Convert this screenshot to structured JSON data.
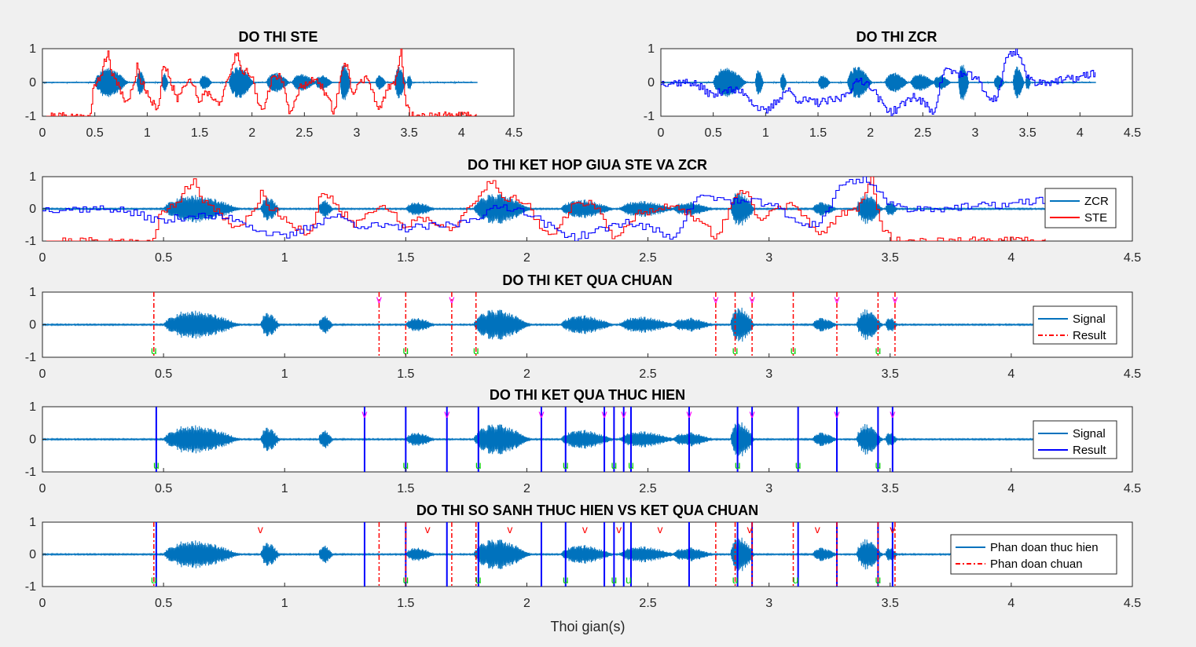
{
  "figure": {
    "xlabel": "Thoi gian(s)"
  },
  "colors": {
    "signal": "#0072BD",
    "ste": "#FF0000",
    "zcr": "#0000FF",
    "result": "#FF0000",
    "impl": "#0000FF",
    "mark_v": "#FF00FF",
    "mark_u": "#00CC00",
    "cmp_v": "#FF0000"
  },
  "chart_data": [
    {
      "id": "ste",
      "type": "line",
      "title": "DO THI STE",
      "xlim": [
        0,
        4.5
      ],
      "ylim": [
        -1,
        1
      ],
      "xticks": [
        "0",
        "0.5",
        "1",
        "1.5",
        "2",
        "2.5",
        "3",
        "3.5",
        "4",
        "4.5"
      ],
      "yticks": [
        "1",
        "0",
        "-1"
      ],
      "series": [
        {
          "name": "Signal",
          "kind": "speech",
          "color": "#0072BD"
        },
        {
          "name": "STE",
          "kind": "ste",
          "color": "#FF0000",
          "points": [
            [
              0,
              -1
            ],
            [
              0.46,
              -1
            ],
            [
              0.48,
              -0.2
            ],
            [
              0.55,
              0.2
            ],
            [
              0.62,
              0.9
            ],
            [
              0.65,
              0.3
            ],
            [
              0.7,
              0.1
            ],
            [
              0.75,
              -0.3
            ],
            [
              0.8,
              -0.6
            ],
            [
              0.86,
              -0.2
            ],
            [
              0.9,
              0.5
            ],
            [
              0.93,
              0.1
            ],
            [
              1.0,
              -0.3
            ],
            [
              1.05,
              -0.6
            ],
            [
              1.1,
              -0.9
            ],
            [
              1.15,
              0.55
            ],
            [
              1.2,
              0.2
            ],
            [
              1.28,
              -0.5
            ],
            [
              1.38,
              0.1
            ],
            [
              1.42,
              0.05
            ],
            [
              1.5,
              -0.6
            ],
            [
              1.55,
              -0.2
            ],
            [
              1.6,
              -0.4
            ],
            [
              1.7,
              -0.6
            ],
            [
              1.75,
              -0.1
            ],
            [
              1.85,
              0.9
            ],
            [
              1.9,
              0.4
            ],
            [
              2.0,
              0.2
            ],
            [
              2.05,
              -0.6
            ],
            [
              2.1,
              -0.9
            ],
            [
              2.2,
              0.3
            ],
            [
              2.28,
              0.1
            ],
            [
              2.35,
              -0.9
            ],
            [
              2.45,
              -0.2
            ],
            [
              2.55,
              0.1
            ],
            [
              2.6,
              0.05
            ],
            [
              2.7,
              -0.3
            ],
            [
              2.78,
              -0.9
            ],
            [
              2.86,
              0.45
            ],
            [
              2.9,
              0.6
            ],
            [
              2.95,
              -0.4
            ],
            [
              3.0,
              -0.1
            ],
            [
              3.1,
              0.2
            ],
            [
              3.2,
              -0.9
            ],
            [
              3.3,
              -0.1
            ],
            [
              3.36,
              0.0
            ],
            [
              3.42,
              0.95
            ],
            [
              3.46,
              -0.6
            ],
            [
              3.5,
              -0.9
            ],
            [
              3.52,
              -1
            ],
            [
              4.15,
              -1
            ]
          ]
        }
      ]
    },
    {
      "id": "zcr",
      "type": "line",
      "title": "DO THI ZCR",
      "xlim": [
        0,
        4.5
      ],
      "ylim": [
        -1,
        1
      ],
      "xticks": [
        "0",
        "0.5",
        "1",
        "1.5",
        "2",
        "2.5",
        "3",
        "3.5",
        "4",
        "4.5"
      ],
      "yticks": [
        "1",
        "0",
        "-1"
      ],
      "series": [
        {
          "name": "Signal",
          "kind": "speech",
          "color": "#0072BD"
        },
        {
          "name": "ZCR",
          "kind": "zcr",
          "color": "#0000FF",
          "points": [
            [
              0,
              0
            ],
            [
              0.3,
              0
            ],
            [
              0.5,
              -0.4
            ],
            [
              0.6,
              -0.2
            ],
            [
              0.8,
              -0.3
            ],
            [
              0.9,
              -0.7
            ],
            [
              1.0,
              -0.9
            ],
            [
              1.2,
              -0.2
            ],
            [
              1.3,
              -0.5
            ],
            [
              1.5,
              -0.6
            ],
            [
              1.7,
              -0.5
            ],
            [
              1.9,
              0.1
            ],
            [
              2.0,
              -0.1
            ],
            [
              2.1,
              -0.6
            ],
            [
              2.2,
              -0.9
            ],
            [
              2.4,
              -0.4
            ],
            [
              2.5,
              -0.6
            ],
            [
              2.6,
              -0.9
            ],
            [
              2.7,
              0.4
            ],
            [
              2.8,
              0.3
            ],
            [
              2.9,
              0.2
            ],
            [
              3.0,
              0.2
            ],
            [
              3.1,
              -0.4
            ],
            [
              3.2,
              -0.5
            ],
            [
              3.3,
              0.8
            ],
            [
              3.4,
              0.95
            ],
            [
              3.5,
              0.1
            ],
            [
              3.6,
              0.0
            ],
            [
              3.8,
              0.05
            ],
            [
              4.0,
              0.15
            ],
            [
              4.15,
              0.3
            ]
          ]
        }
      ]
    },
    {
      "id": "combined",
      "type": "line",
      "title": "DO THI KET HOP GIUA STE VA ZCR",
      "xlim": [
        0,
        4.5
      ],
      "ylim": [
        -1,
        1
      ],
      "xticks": [
        "0",
        "0.5",
        "1",
        "1.5",
        "2",
        "2.5",
        "3",
        "3.5",
        "4",
        "4.5"
      ],
      "yticks": [
        "1",
        "0",
        "-1"
      ],
      "legend": {
        "position": "right",
        "entries": [
          {
            "label": "ZCR",
            "color": "#0072BD",
            "style": "solid"
          },
          {
            "label": "STE",
            "color": "#FF0000",
            "style": "solid"
          }
        ]
      },
      "series": [
        {
          "name": "Signal",
          "kind": "speech",
          "color": "#0072BD"
        },
        {
          "name": "STE",
          "kind": "ste",
          "color": "#FF0000"
        },
        {
          "name": "ZCR",
          "kind": "zcr",
          "color": "#0000FF"
        }
      ]
    },
    {
      "id": "reference",
      "type": "line",
      "title": "DO THI KET QUA CHUAN",
      "xlim": [
        0,
        4.5
      ],
      "ylim": [
        -1,
        1
      ],
      "xticks": [
        "0",
        "0.5",
        "1",
        "1.5",
        "2",
        "2.5",
        "3",
        "3.5",
        "4",
        "4.5"
      ],
      "yticks": [
        "1",
        "0",
        "-1"
      ],
      "legend": {
        "position": "right",
        "entries": [
          {
            "label": "Signal",
            "color": "#0072BD",
            "style": "solid"
          },
          {
            "label": "Result",
            "color": "#FF0000",
            "style": "dashdot"
          }
        ]
      },
      "series": [
        {
          "name": "Signal",
          "kind": "speech",
          "color": "#0072BD"
        }
      ],
      "boundaries": [
        {
          "name": "Result",
          "style": "dashdot",
          "color": "#FF0000",
          "x": [
            0.46,
            1.39,
            1.5,
            1.69,
            1.79,
            2.78,
            2.86,
            2.93,
            3.1,
            3.28,
            3.45,
            3.52
          ]
        }
      ],
      "markers": [
        {
          "label": "u",
          "x": 0.46,
          "pos": "bottom",
          "color": "#00CC00"
        },
        {
          "label": "v",
          "x": 1.39,
          "pos": "top",
          "color": "#FF00FF"
        },
        {
          "label": "u",
          "x": 1.5,
          "pos": "bottom",
          "color": "#00CC00"
        },
        {
          "label": "v",
          "x": 1.69,
          "pos": "top",
          "color": "#FF00FF"
        },
        {
          "label": "u",
          "x": 1.79,
          "pos": "bottom",
          "color": "#00CC00"
        },
        {
          "label": "v",
          "x": 2.78,
          "pos": "top",
          "color": "#FF00FF"
        },
        {
          "label": "u",
          "x": 2.86,
          "pos": "bottom",
          "color": "#00CC00"
        },
        {
          "label": "v",
          "x": 2.93,
          "pos": "top",
          "color": "#FF00FF"
        },
        {
          "label": "u",
          "x": 3.1,
          "pos": "bottom",
          "color": "#00CC00"
        },
        {
          "label": "v",
          "x": 3.28,
          "pos": "top",
          "color": "#FF00FF"
        },
        {
          "label": "u",
          "x": 3.45,
          "pos": "bottom",
          "color": "#00CC00"
        },
        {
          "label": "v",
          "x": 3.52,
          "pos": "top",
          "color": "#FF00FF"
        }
      ]
    },
    {
      "id": "implemented",
      "type": "line",
      "title": "DO THI KET QUA THUC HIEN",
      "xlim": [
        0,
        4.5
      ],
      "ylim": [
        -1,
        1
      ],
      "xticks": [
        "0",
        "0.5",
        "1",
        "1.5",
        "2",
        "2.5",
        "3",
        "3.5",
        "4",
        "4.5"
      ],
      "yticks": [
        "1",
        "0",
        "-1"
      ],
      "legend": {
        "position": "right",
        "entries": [
          {
            "label": "Signal",
            "color": "#0072BD",
            "style": "solid"
          },
          {
            "label": "Result",
            "color": "#0000FF",
            "style": "solid"
          }
        ]
      },
      "series": [
        {
          "name": "Signal",
          "kind": "speech",
          "color": "#0072BD"
        }
      ],
      "boundaries": [
        {
          "name": "Result",
          "style": "solid",
          "color": "#0000FF",
          "x": [
            0.47,
            1.33,
            1.5,
            1.67,
            1.8,
            2.06,
            2.16,
            2.32,
            2.36,
            2.4,
            2.43,
            2.67,
            2.87,
            2.93,
            3.12,
            3.28,
            3.45,
            3.51
          ]
        }
      ],
      "markers": [
        {
          "label": "u",
          "x": 0.47,
          "pos": "bottom",
          "color": "#00CC00"
        },
        {
          "label": "v",
          "x": 1.33,
          "pos": "top",
          "color": "#FF00FF"
        },
        {
          "label": "u",
          "x": 1.5,
          "pos": "bottom",
          "color": "#00CC00"
        },
        {
          "label": "v",
          "x": 1.67,
          "pos": "top",
          "color": "#FF00FF"
        },
        {
          "label": "u",
          "x": 1.8,
          "pos": "bottom",
          "color": "#00CC00"
        },
        {
          "label": "v",
          "x": 2.06,
          "pos": "top",
          "color": "#FF00FF"
        },
        {
          "label": "u",
          "x": 2.16,
          "pos": "bottom",
          "color": "#00CC00"
        },
        {
          "label": "v",
          "x": 2.32,
          "pos": "top",
          "color": "#FF00FF"
        },
        {
          "label": "u",
          "x": 2.36,
          "pos": "bottom",
          "color": "#00CC00"
        },
        {
          "label": "v",
          "x": 2.4,
          "pos": "top",
          "color": "#FF00FF"
        },
        {
          "label": "u",
          "x": 2.43,
          "pos": "bottom",
          "color": "#00CC00"
        },
        {
          "label": "v",
          "x": 2.67,
          "pos": "top",
          "color": "#FF00FF"
        },
        {
          "label": "u",
          "x": 2.87,
          "pos": "bottom",
          "color": "#00CC00"
        },
        {
          "label": "v",
          "x": 2.93,
          "pos": "top",
          "color": "#FF00FF"
        },
        {
          "label": "u",
          "x": 3.12,
          "pos": "bottom",
          "color": "#00CC00"
        },
        {
          "label": "v",
          "x": 3.28,
          "pos": "top",
          "color": "#FF00FF"
        },
        {
          "label": "u",
          "x": 3.45,
          "pos": "bottom",
          "color": "#00CC00"
        },
        {
          "label": "v",
          "x": 3.51,
          "pos": "top",
          "color": "#FF00FF"
        }
      ]
    },
    {
      "id": "comparison",
      "type": "line",
      "title": "DO THI SO SANH THUC HIEN VS KET QUA CHUAN",
      "xlim": [
        0,
        4.5
      ],
      "ylim": [
        -1,
        1
      ],
      "xticks": [
        "0",
        "0.5",
        "1",
        "1.5",
        "2",
        "2.5",
        "3",
        "3.5",
        "4",
        "4.5"
      ],
      "yticks": [
        "1",
        "0",
        "-1"
      ],
      "legend": {
        "position": "right",
        "entries": [
          {
            "label": "Phan doan thuc hien",
            "color": "#0072BD",
            "style": "solid"
          },
          {
            "label": "Phan doan chuan",
            "color": "#FF0000",
            "style": "dashdot"
          }
        ]
      },
      "series": [
        {
          "name": "Signal",
          "kind": "speech",
          "color": "#0072BD"
        }
      ],
      "boundaries": [
        {
          "name": "Phan doan thuc hien",
          "style": "solid",
          "color": "#0000FF",
          "x": [
            0.47,
            1.33,
            1.5,
            1.67,
            1.8,
            2.06,
            2.16,
            2.32,
            2.36,
            2.4,
            2.43,
            2.67,
            2.87,
            2.93,
            3.12,
            3.28,
            3.45,
            3.51
          ]
        },
        {
          "name": "Phan doan chuan",
          "style": "dashdot",
          "color": "#FF0000",
          "x": [
            0.46,
            1.39,
            1.5,
            1.69,
            1.79,
            2.78,
            2.86,
            2.93,
            3.1,
            3.28,
            3.45,
            3.52
          ]
        }
      ],
      "markers": [
        {
          "label": "u",
          "x": 0.46,
          "pos": "bottom",
          "color": "#00CC00"
        },
        {
          "label": "v",
          "x": 0.9,
          "pos": "top",
          "color": "#FF0000"
        },
        {
          "label": "u",
          "x": 1.5,
          "pos": "bottom",
          "color": "#00CC00"
        },
        {
          "label": "v",
          "x": 1.59,
          "pos": "top",
          "color": "#FF0000"
        },
        {
          "label": "u",
          "x": 1.8,
          "pos": "bottom",
          "color": "#00CC00"
        },
        {
          "label": "v",
          "x": 1.93,
          "pos": "top",
          "color": "#FF0000"
        },
        {
          "label": "u",
          "x": 2.16,
          "pos": "bottom",
          "color": "#00CC00"
        },
        {
          "label": "v",
          "x": 2.24,
          "pos": "top",
          "color": "#FF0000"
        },
        {
          "label": "u",
          "x": 2.36,
          "pos": "bottom",
          "color": "#00CC00"
        },
        {
          "label": "v",
          "x": 2.38,
          "pos": "top",
          "color": "#FF0000"
        },
        {
          "label": "u",
          "x": 2.42,
          "pos": "bottom",
          "color": "#00CC00"
        },
        {
          "label": "v",
          "x": 2.55,
          "pos": "top",
          "color": "#FF0000"
        },
        {
          "label": "u",
          "x": 2.86,
          "pos": "bottom",
          "color": "#00CC00"
        },
        {
          "label": "v",
          "x": 2.92,
          "pos": "top",
          "color": "#FF0000"
        },
        {
          "label": "u",
          "x": 3.11,
          "pos": "bottom",
          "color": "#00CC00"
        },
        {
          "label": "v",
          "x": 3.2,
          "pos": "top",
          "color": "#FF0000"
        },
        {
          "label": "u",
          "x": 3.45,
          "pos": "bottom",
          "color": "#00CC00"
        },
        {
          "label": "v",
          "x": 3.51,
          "pos": "top",
          "color": "#FF0000"
        }
      ]
    }
  ]
}
